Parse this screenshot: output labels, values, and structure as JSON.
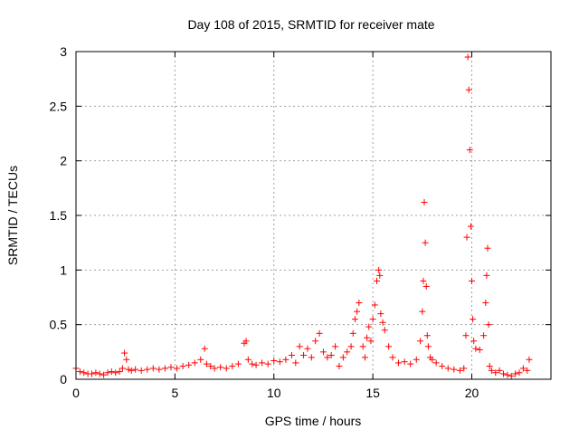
{
  "chart_data": {
    "type": "scatter",
    "title": "Day 108 of 2015, SRMTID for receiver mate",
    "xlabel": "GPS time / hours",
    "ylabel": "SRMTID / TECUs",
    "xlim": [
      0,
      24
    ],
    "ylim": [
      0,
      3
    ],
    "xticks": [
      0,
      5,
      10,
      15,
      20
    ],
    "xtick_labels": [
      "0",
      "5",
      "10",
      "15",
      "20"
    ],
    "yticks": [
      0,
      0.5,
      1,
      1.5,
      2,
      2.5,
      3
    ],
    "ytick_labels": [
      "0",
      "0.5",
      "1",
      "1.5",
      "2",
      "2.5",
      "3"
    ],
    "grid": true,
    "marker": "+",
    "marker_color": "#ff0000",
    "series": [
      {
        "name": "SRMTID",
        "x": [
          0.0,
          0.2,
          0.4,
          0.6,
          0.8,
          1.0,
          1.2,
          1.4,
          1.6,
          1.8,
          2.0,
          2.2,
          2.35,
          2.45,
          2.55,
          2.65,
          2.8,
          3.0,
          3.3,
          3.6,
          3.9,
          4.2,
          4.5,
          4.8,
          5.1,
          5.4,
          5.7,
          6.0,
          6.3,
          6.5,
          6.6,
          6.8,
          7.0,
          7.3,
          7.6,
          7.9,
          8.2,
          8.5,
          8.6,
          8.7,
          8.9,
          9.1,
          9.4,
          9.7,
          10.0,
          10.3,
          10.6,
          10.9,
          11.1,
          11.3,
          11.5,
          11.7,
          11.9,
          12.1,
          12.3,
          12.5,
          12.7,
          12.9,
          13.1,
          13.3,
          13.5,
          13.7,
          13.9,
          14.0,
          14.1,
          14.2,
          14.3,
          14.5,
          14.6,
          14.7,
          14.8,
          14.9,
          15.0,
          15.1,
          15.2,
          15.3,
          15.35,
          15.4,
          15.5,
          15.6,
          15.8,
          16.0,
          16.3,
          16.6,
          16.9,
          17.2,
          17.4,
          17.5,
          17.55,
          17.6,
          17.65,
          17.7,
          17.75,
          17.8,
          17.9,
          18.0,
          18.2,
          18.5,
          18.8,
          19.1,
          19.4,
          19.6,
          19.7,
          19.75,
          19.8,
          19.85,
          19.9,
          19.95,
          20.0,
          20.05,
          20.1,
          20.2,
          20.4,
          20.6,
          20.7,
          20.75,
          20.8,
          20.85,
          20.9,
          21.0,
          21.2,
          21.4,
          21.6,
          21.8,
          22.0,
          22.2,
          22.4,
          22.6,
          22.8,
          22.9
        ],
        "y": [
          0.1,
          0.07,
          0.06,
          0.05,
          0.05,
          0.06,
          0.05,
          0.04,
          0.06,
          0.07,
          0.06,
          0.07,
          0.1,
          0.24,
          0.18,
          0.09,
          0.08,
          0.09,
          0.08,
          0.09,
          0.1,
          0.09,
          0.1,
          0.11,
          0.1,
          0.12,
          0.13,
          0.15,
          0.18,
          0.28,
          0.14,
          0.12,
          0.1,
          0.11,
          0.1,
          0.12,
          0.14,
          0.33,
          0.35,
          0.18,
          0.14,
          0.13,
          0.15,
          0.14,
          0.17,
          0.16,
          0.18,
          0.22,
          0.15,
          0.3,
          0.22,
          0.28,
          0.2,
          0.35,
          0.42,
          0.25,
          0.2,
          0.22,
          0.3,
          0.12,
          0.2,
          0.25,
          0.3,
          0.42,
          0.55,
          0.62,
          0.7,
          0.3,
          0.2,
          0.38,
          0.48,
          0.35,
          0.55,
          0.68,
          0.9,
          1.0,
          0.95,
          0.6,
          0.52,
          0.45,
          0.3,
          0.2,
          0.15,
          0.16,
          0.14,
          0.18,
          0.35,
          0.62,
          0.9,
          1.62,
          1.25,
          0.85,
          0.4,
          0.3,
          0.2,
          0.18,
          0.15,
          0.12,
          0.1,
          0.09,
          0.08,
          0.1,
          0.4,
          1.3,
          2.95,
          2.65,
          2.1,
          1.4,
          0.9,
          0.55,
          0.35,
          0.28,
          0.27,
          0.4,
          0.7,
          0.95,
          1.2,
          0.5,
          0.12,
          0.08,
          0.06,
          0.08,
          0.05,
          0.04,
          0.03,
          0.05,
          0.06,
          0.1,
          0.08,
          0.18
        ]
      }
    ]
  }
}
